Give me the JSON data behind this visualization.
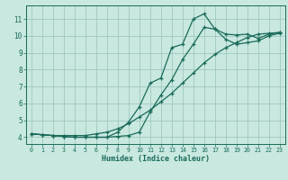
{
  "xlabel": "Humidex (Indice chaleur)",
  "bg_color": "#c8e8e0",
  "grid_color": "#a0c8c0",
  "line_color": "#1a6b5a",
  "xlim": [
    -0.5,
    23.5
  ],
  "ylim": [
    3.6,
    11.8
  ],
  "xticks": [
    0,
    1,
    2,
    3,
    4,
    5,
    6,
    7,
    8,
    9,
    10,
    11,
    12,
    13,
    14,
    15,
    16,
    17,
    18,
    19,
    20,
    21,
    22,
    23
  ],
  "yticks": [
    4,
    5,
    6,
    7,
    8,
    9,
    10,
    11
  ],
  "curve1_x": [
    0,
    1,
    2,
    3,
    4,
    5,
    6,
    7,
    8,
    9,
    10,
    11,
    12,
    13,
    14,
    15,
    16,
    17,
    18,
    19,
    20,
    21,
    22,
    23
  ],
  "curve1_y": [
    4.2,
    4.15,
    4.1,
    4.1,
    4.1,
    4.1,
    4.2,
    4.3,
    4.5,
    4.8,
    5.2,
    5.6,
    6.1,
    6.6,
    7.2,
    7.8,
    8.4,
    8.9,
    9.3,
    9.6,
    9.9,
    10.1,
    10.15,
    10.2
  ],
  "curve2_x": [
    0,
    1,
    2,
    3,
    4,
    5,
    6,
    7,
    8,
    9,
    10,
    11,
    12,
    13,
    14,
    15,
    16,
    17,
    18,
    19,
    20,
    21,
    22,
    23
  ],
  "curve2_y": [
    4.2,
    4.15,
    4.1,
    4.05,
    4.0,
    4.0,
    4.0,
    4.0,
    4.05,
    4.1,
    4.3,
    5.5,
    6.5,
    7.4,
    8.6,
    9.5,
    10.5,
    10.4,
    9.8,
    9.5,
    9.6,
    9.7,
    10.0,
    10.15
  ],
  "curve3_x": [
    0,
    1,
    2,
    3,
    4,
    5,
    6,
    7,
    8,
    9,
    10,
    11,
    12,
    13,
    14,
    15,
    16,
    17,
    18,
    19,
    20,
    21,
    22,
    23
  ],
  "curve3_y": [
    4.2,
    4.15,
    4.1,
    4.05,
    4.0,
    4.0,
    4.0,
    4.0,
    4.3,
    4.9,
    5.8,
    7.2,
    7.5,
    9.3,
    9.5,
    11.0,
    11.3,
    10.4,
    10.1,
    10.05,
    10.1,
    9.85,
    10.1,
    10.2
  ]
}
